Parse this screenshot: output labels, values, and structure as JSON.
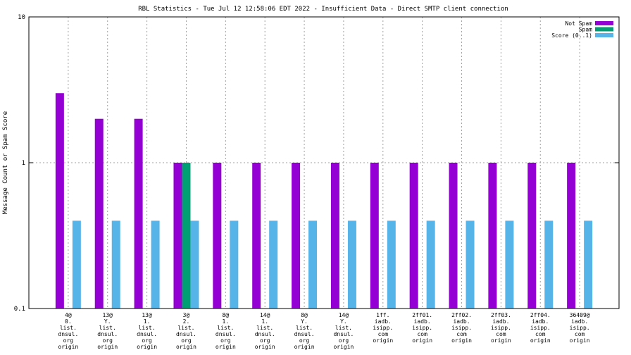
{
  "chart_data": {
    "type": "bar",
    "title": "RBL Statistics - Tue Jul 12 12:58:06 EDT 2022 - Insufficient Data - Direct SMTP client connection",
    "xlabel": "",
    "ylabel": "Message Count or Spam Score",
    "y_scale": "log",
    "ylim": [
      0.1,
      10
    ],
    "y_ticks": [
      "10",
      "1",
      "0.1"
    ],
    "grid": true,
    "legend_position": "top-right",
    "categories": [
      [
        "4@",
        "0.",
        "list.",
        "dnsul.",
        "org",
        "origin"
      ],
      [
        "13@",
        "Y.",
        "list.",
        "dnsul.",
        "org",
        "origin"
      ],
      [
        "13@",
        "1.",
        "list.",
        "dnsul.",
        "org",
        "origin"
      ],
      [
        "3@",
        "2.",
        "list.",
        "dnsul.",
        "org",
        "origin"
      ],
      [
        "8@",
        "1.",
        "list.",
        "dnsul.",
        "org",
        "origin"
      ],
      [
        "14@",
        "1.",
        "list.",
        "dnsul.",
        "org",
        "origin"
      ],
      [
        "8@",
        "Y.",
        "list.",
        "dnsul.",
        "org",
        "origin"
      ],
      [
        "14@",
        "Y.",
        "list.",
        "dnsul.",
        "org",
        "origin"
      ],
      [
        "1ff.",
        "iadb.",
        "isipp.",
        "com",
        "origin"
      ],
      [
        "2ff01.",
        "iadb.",
        "isipp.",
        "com",
        "origin"
      ],
      [
        "2ff02.",
        "iadb.",
        "isipp.",
        "com",
        "origin"
      ],
      [
        "2ff03.",
        "iadb.",
        "isipp.",
        "com",
        "origin"
      ],
      [
        "2ff04.",
        "iadb.",
        "isipp.",
        "com",
        "origin"
      ],
      [
        "36409@",
        "iadb.",
        "isipp.",
        "com",
        "origin"
      ]
    ],
    "series": [
      {
        "name": "Not Spam",
        "color": "#9400d3",
        "values": [
          3,
          2,
          2,
          1,
          1,
          1,
          1,
          1,
          1,
          1,
          1,
          1,
          1,
          1
        ]
      },
      {
        "name": "Spam",
        "color": "#009e73",
        "values": [
          0,
          0,
          0,
          1,
          0,
          0,
          0,
          0,
          0,
          0,
          0,
          0,
          0,
          0
        ]
      },
      {
        "name": "Score (0..1)",
        "color": "#56b4e9",
        "values": [
          0.4,
          0.4,
          0.4,
          0.4,
          0.4,
          0.4,
          0.4,
          0.4,
          0.4,
          0.4,
          0.4,
          0.4,
          0.4,
          0.4
        ]
      }
    ]
  }
}
